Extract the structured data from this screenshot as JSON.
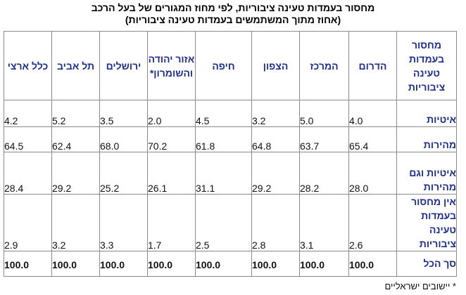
{
  "title": {
    "line1": "מחסור בעמדות טעינה ציבוריות, לפי מחוז המגורים של בעל הרכב",
    "line2": "(אחוז מתוך המשתמשים בעמדות טעינה ציבוריות)"
  },
  "header": {
    "row_label": "מחסור בעמדות טעינה ציבוריות",
    "columns": [
      "הדרום",
      "המרכז",
      "הצפון",
      "חיפה",
      "אזור יהודה והשומרון*",
      "ירושלים",
      "תל אביב",
      "כלל ארצי"
    ]
  },
  "rows": [
    {
      "label": "איטיות",
      "values": [
        "4.0",
        "5.0",
        "3.2",
        "4.5",
        "2.0",
        "3.5",
        "5.2",
        "4.2"
      ]
    },
    {
      "label": "מהירות",
      "values": [
        "65.4",
        "63.7",
        "64.8",
        "61.8",
        "70.2",
        "68.0",
        "62.4",
        "64.5"
      ]
    },
    {
      "label": "איטיות וגם מהירות",
      "values": [
        "28.0",
        "28.2",
        "29.2",
        "31.1",
        "26.1",
        "25.2",
        "29.2",
        "28.4"
      ]
    },
    {
      "label": "אין מחסור בעמדות טעינה ציבוריות",
      "values": [
        "2.6",
        "3.1",
        "2.8",
        "2.5",
        "1.7",
        "3.3",
        "3.2",
        "2.9"
      ]
    },
    {
      "label": "סך הכל",
      "values": [
        "100.0",
        "100.0",
        "100.0",
        "100.0",
        "100.0",
        "100.0",
        "100.0",
        "100.0"
      ]
    }
  ],
  "footnote": "* יישובים ישראליים",
  "colors": {
    "header_text": "#1f2f8c",
    "border": "#8a8a8a"
  }
}
